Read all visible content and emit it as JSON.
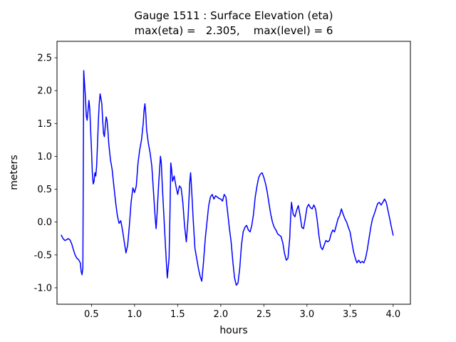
{
  "chart_data": {
    "type": "line",
    "title": "Gauge 1511 : Surface Elevation (eta)",
    "subtitle": "max(eta) =   2.305,    max(level) = 6",
    "xlabel": "hours",
    "ylabel": "meters",
    "xlim": [
      0.1,
      4.2
    ],
    "ylim": [
      -1.25,
      2.75
    ],
    "xticks": [
      0.5,
      1.0,
      1.5,
      2.0,
      2.5,
      3.0,
      3.5,
      4.0
    ],
    "xtick_labels": [
      "0.5",
      "1.0",
      "1.5",
      "2.0",
      "2.5",
      "3.0",
      "3.5",
      "4.0"
    ],
    "yticks": [
      -1.0,
      -0.5,
      0.0,
      0.5,
      1.0,
      1.5,
      2.0,
      2.5
    ],
    "ytick_labels": [
      "-1.0",
      "-0.5",
      "0.0",
      "0.5",
      "1.0",
      "1.5",
      "2.0",
      "2.5"
    ],
    "grid": false,
    "legend": null,
    "background": "#ffffff",
    "axis_color": "#000000",
    "line_color": "#0000ff",
    "line_width": 1.5,
    "max_eta": 2.305,
    "max_level": 6,
    "series": [
      {
        "name": "eta",
        "points": [
          [
            0.15,
            -0.2
          ],
          [
            0.17,
            -0.25
          ],
          [
            0.19,
            -0.28
          ],
          [
            0.21,
            -0.27
          ],
          [
            0.23,
            -0.25
          ],
          [
            0.25,
            -0.27
          ],
          [
            0.27,
            -0.33
          ],
          [
            0.29,
            -0.42
          ],
          [
            0.31,
            -0.5
          ],
          [
            0.33,
            -0.55
          ],
          [
            0.35,
            -0.57
          ],
          [
            0.37,
            -0.62
          ],
          [
            0.38,
            -0.75
          ],
          [
            0.39,
            -0.8
          ],
          [
            0.4,
            -0.7
          ],
          [
            0.405,
            0.8
          ],
          [
            0.41,
            2.305
          ],
          [
            0.42,
            2.1
          ],
          [
            0.43,
            1.9
          ],
          [
            0.44,
            1.62
          ],
          [
            0.45,
            1.55
          ],
          [
            0.46,
            1.7
          ],
          [
            0.47,
            1.85
          ],
          [
            0.48,
            1.72
          ],
          [
            0.49,
            1.4
          ],
          [
            0.5,
            1.1
          ],
          [
            0.51,
            0.75
          ],
          [
            0.52,
            0.58
          ],
          [
            0.53,
            0.62
          ],
          [
            0.54,
            0.75
          ],
          [
            0.55,
            0.7
          ],
          [
            0.56,
            0.85
          ],
          [
            0.57,
            1.2
          ],
          [
            0.58,
            1.55
          ],
          [
            0.59,
            1.8
          ],
          [
            0.6,
            1.95
          ],
          [
            0.61,
            1.88
          ],
          [
            0.62,
            1.8
          ],
          [
            0.63,
            1.55
          ],
          [
            0.64,
            1.35
          ],
          [
            0.65,
            1.3
          ],
          [
            0.66,
            1.45
          ],
          [
            0.67,
            1.6
          ],
          [
            0.68,
            1.55
          ],
          [
            0.69,
            1.4
          ],
          [
            0.7,
            1.2
          ],
          [
            0.72,
            0.95
          ],
          [
            0.74,
            0.8
          ],
          [
            0.76,
            0.55
          ],
          [
            0.78,
            0.3
          ],
          [
            0.8,
            0.1
          ],
          [
            0.82,
            -0.02
          ],
          [
            0.84,
            0.02
          ],
          [
            0.85,
            -0.05
          ],
          [
            0.86,
            -0.12
          ],
          [
            0.88,
            -0.3
          ],
          [
            0.9,
            -0.47
          ],
          [
            0.92,
            -0.35
          ],
          [
            0.94,
            -0.05
          ],
          [
            0.96,
            0.3
          ],
          [
            0.98,
            0.52
          ],
          [
            1.0,
            0.45
          ],
          [
            1.02,
            0.55
          ],
          [
            1.04,
            0.9
          ],
          [
            1.06,
            1.1
          ],
          [
            1.08,
            1.25
          ],
          [
            1.1,
            1.5
          ],
          [
            1.11,
            1.7
          ],
          [
            1.12,
            1.8
          ],
          [
            1.13,
            1.65
          ],
          [
            1.14,
            1.4
          ],
          [
            1.15,
            1.3
          ],
          [
            1.16,
            1.2
          ],
          [
            1.18,
            1.05
          ],
          [
            1.2,
            0.85
          ],
          [
            1.22,
            0.45
          ],
          [
            1.24,
            0.05
          ],
          [
            1.25,
            -0.1
          ],
          [
            1.26,
            0.1
          ],
          [
            1.28,
            0.6
          ],
          [
            1.3,
            1.0
          ],
          [
            1.31,
            0.9
          ],
          [
            1.32,
            0.6
          ],
          [
            1.34,
            0.1
          ],
          [
            1.36,
            -0.4
          ],
          [
            1.38,
            -0.85
          ],
          [
            1.4,
            -0.55
          ],
          [
            1.41,
            0.1
          ],
          [
            1.42,
            0.9
          ],
          [
            1.43,
            0.8
          ],
          [
            1.44,
            0.62
          ],
          [
            1.46,
            0.7
          ],
          [
            1.48,
            0.55
          ],
          [
            1.5,
            0.42
          ],
          [
            1.52,
            0.55
          ],
          [
            1.54,
            0.52
          ],
          [
            1.56,
            0.3
          ],
          [
            1.58,
            -0.05
          ],
          [
            1.6,
            -0.3
          ],
          [
            1.62,
            0.05
          ],
          [
            1.64,
            0.6
          ],
          [
            1.65,
            0.75
          ],
          [
            1.66,
            0.55
          ],
          [
            1.68,
            0.05
          ],
          [
            1.7,
            -0.4
          ],
          [
            1.72,
            -0.55
          ],
          [
            1.74,
            -0.7
          ],
          [
            1.76,
            -0.82
          ],
          [
            1.78,
            -0.9
          ],
          [
            1.8,
            -0.6
          ],
          [
            1.82,
            -0.25
          ],
          [
            1.84,
            0.0
          ],
          [
            1.86,
            0.25
          ],
          [
            1.88,
            0.38
          ],
          [
            1.9,
            0.42
          ],
          [
            1.92,
            0.35
          ],
          [
            1.94,
            0.4
          ],
          [
            1.96,
            0.38
          ],
          [
            1.98,
            0.36
          ],
          [
            2.0,
            0.35
          ],
          [
            2.02,
            0.32
          ],
          [
            2.04,
            0.42
          ],
          [
            2.06,
            0.38
          ],
          [
            2.08,
            0.15
          ],
          [
            2.1,
            -0.1
          ],
          [
            2.12,
            -0.3
          ],
          [
            2.14,
            -0.6
          ],
          [
            2.16,
            -0.85
          ],
          [
            2.18,
            -0.96
          ],
          [
            2.2,
            -0.93
          ],
          [
            2.22,
            -0.7
          ],
          [
            2.24,
            -0.35
          ],
          [
            2.26,
            -0.15
          ],
          [
            2.28,
            -0.08
          ],
          [
            2.3,
            -0.05
          ],
          [
            2.32,
            -0.12
          ],
          [
            2.34,
            -0.15
          ],
          [
            2.36,
            -0.05
          ],
          [
            2.38,
            0.12
          ],
          [
            2.4,
            0.38
          ],
          [
            2.42,
            0.55
          ],
          [
            2.44,
            0.68
          ],
          [
            2.46,
            0.73
          ],
          [
            2.48,
            0.75
          ],
          [
            2.5,
            0.68
          ],
          [
            2.52,
            0.58
          ],
          [
            2.54,
            0.45
          ],
          [
            2.56,
            0.28
          ],
          [
            2.58,
            0.12
          ],
          [
            2.6,
            0.0
          ],
          [
            2.62,
            -0.08
          ],
          [
            2.64,
            -0.12
          ],
          [
            2.66,
            -0.18
          ],
          [
            2.68,
            -0.2
          ],
          [
            2.7,
            -0.22
          ],
          [
            2.72,
            -0.32
          ],
          [
            2.74,
            -0.48
          ],
          [
            2.76,
            -0.58
          ],
          [
            2.78,
            -0.55
          ],
          [
            2.8,
            -0.25
          ],
          [
            2.81,
            0.05
          ],
          [
            2.82,
            0.3
          ],
          [
            2.84,
            0.12
          ],
          [
            2.86,
            0.08
          ],
          [
            2.88,
            0.18
          ],
          [
            2.9,
            0.25
          ],
          [
            2.92,
            0.1
          ],
          [
            2.94,
            -0.08
          ],
          [
            2.96,
            -0.1
          ],
          [
            2.98,
            0.05
          ],
          [
            3.0,
            0.22
          ],
          [
            3.02,
            0.27
          ],
          [
            3.04,
            0.22
          ],
          [
            3.06,
            0.2
          ],
          [
            3.08,
            0.26
          ],
          [
            3.1,
            0.2
          ],
          [
            3.12,
            0.02
          ],
          [
            3.14,
            -0.22
          ],
          [
            3.16,
            -0.38
          ],
          [
            3.18,
            -0.42
          ],
          [
            3.2,
            -0.35
          ],
          [
            3.22,
            -0.28
          ],
          [
            3.24,
            -0.3
          ],
          [
            3.26,
            -0.28
          ],
          [
            3.28,
            -0.18
          ],
          [
            3.3,
            -0.12
          ],
          [
            3.32,
            -0.15
          ],
          [
            3.34,
            -0.05
          ],
          [
            3.36,
            0.05
          ],
          [
            3.38,
            0.1
          ],
          [
            3.4,
            0.2
          ],
          [
            3.42,
            0.12
          ],
          [
            3.44,
            0.05
          ],
          [
            3.46,
            0.0
          ],
          [
            3.48,
            -0.08
          ],
          [
            3.5,
            -0.15
          ],
          [
            3.52,
            -0.3
          ],
          [
            3.54,
            -0.45
          ],
          [
            3.56,
            -0.55
          ],
          [
            3.58,
            -0.62
          ],
          [
            3.6,
            -0.58
          ],
          [
            3.62,
            -0.62
          ],
          [
            3.64,
            -0.6
          ],
          [
            3.66,
            -0.62
          ],
          [
            3.68,
            -0.55
          ],
          [
            3.7,
            -0.42
          ],
          [
            3.72,
            -0.25
          ],
          [
            3.74,
            -0.08
          ],
          [
            3.76,
            0.05
          ],
          [
            3.78,
            0.12
          ],
          [
            3.8,
            0.2
          ],
          [
            3.82,
            0.28
          ],
          [
            3.84,
            0.3
          ],
          [
            3.86,
            0.26
          ],
          [
            3.88,
            0.3
          ],
          [
            3.9,
            0.35
          ],
          [
            3.92,
            0.3
          ],
          [
            3.94,
            0.18
          ],
          [
            3.96,
            0.05
          ],
          [
            3.98,
            -0.08
          ],
          [
            4.0,
            -0.2
          ]
        ]
      }
    ]
  }
}
